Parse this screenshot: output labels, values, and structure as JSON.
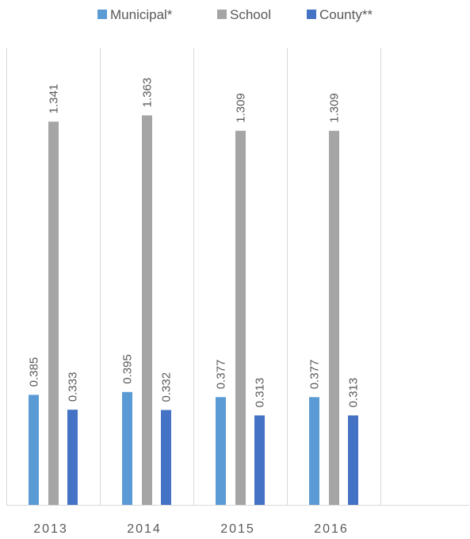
{
  "chart_data": {
    "type": "bar",
    "categories": [
      "2013",
      "2014",
      "2015",
      "2016"
    ],
    "series": [
      {
        "name": "Municipal*",
        "values": [
          0.385,
          0.395,
          0.377,
          0.377
        ],
        "labels": [
          "0.385",
          "0.395",
          "0.377",
          "0.377"
        ],
        "color": "#5B9BD5"
      },
      {
        "name": "School",
        "values": [
          1.341,
          1.363,
          1.309,
          1.309
        ],
        "labels": [
          "1.341",
          "1.363",
          "1.309",
          "1.309"
        ],
        "color": "#A5A5A5"
      },
      {
        "name": "County**",
        "values": [
          0.333,
          0.332,
          0.313,
          0.313
        ],
        "labels": [
          "0.333",
          "0.332",
          "0.313",
          "0.313"
        ],
        "color": "#4472C4"
      }
    ],
    "ylim": [
      0,
      1.6
    ],
    "legend_position": "top",
    "grid": "vertical category separators",
    "title": "",
    "xlabel": "",
    "ylabel": ""
  }
}
